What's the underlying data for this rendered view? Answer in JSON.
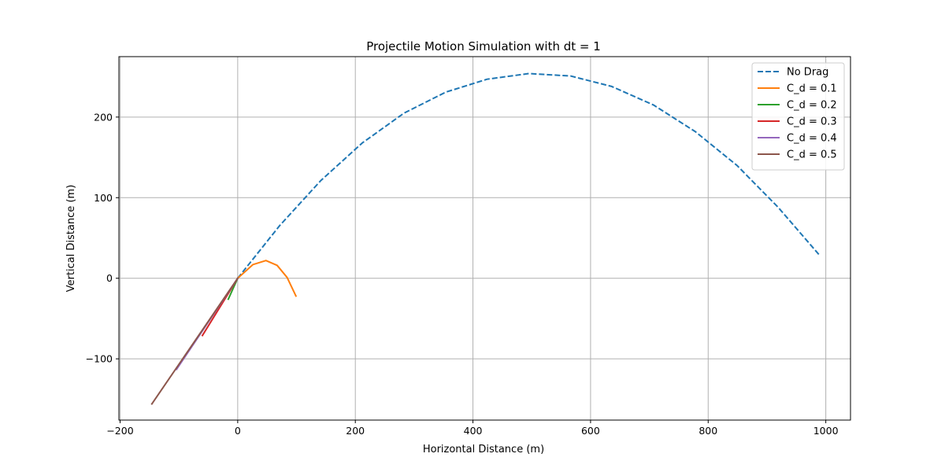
{
  "chart_data": {
    "type": "line",
    "title": "Projectile Motion Simulation with dt = 1",
    "xlabel": "Horizontal Distance (m)",
    "ylabel": "Vertical Distance (m)",
    "xlim": [
      -202,
      1042
    ],
    "ylim": [
      -176,
      275
    ],
    "xticks": [
      -200,
      0,
      200,
      400,
      600,
      800,
      1000
    ],
    "yticks": [
      -100,
      0,
      100,
      200
    ],
    "xtick_labels": [
      "−200",
      "0",
      "200",
      "400",
      "600",
      "800",
      "1000"
    ],
    "ytick_labels": [
      "−100",
      "0",
      "100",
      "200"
    ],
    "grid": true,
    "legend_position": "top-right",
    "series": [
      {
        "name": "No Drag",
        "color": "#1f77b4",
        "dash": "dashed",
        "points": [
          [
            0,
            0
          ],
          [
            71,
            65
          ],
          [
            141,
            121
          ],
          [
            212,
            168
          ],
          [
            283,
            205
          ],
          [
            354,
            231
          ],
          [
            424,
            247
          ],
          [
            495,
            254
          ],
          [
            566,
            251
          ],
          [
            636,
            238
          ],
          [
            707,
            215
          ],
          [
            778,
            182
          ],
          [
            849,
            140
          ],
          [
            919,
            88
          ],
          [
            990,
            28
          ]
        ]
      },
      {
        "name": "C_d = 0.1",
        "color": "#ff7f0e",
        "dash": "solid",
        "points": [
          [
            0,
            0
          ],
          [
            26,
            17
          ],
          [
            48,
            22
          ],
          [
            67,
            16
          ],
          [
            84,
            1
          ],
          [
            99,
            -22
          ]
        ]
      },
      {
        "name": "C_d = 0.2",
        "color": "#2ca02c",
        "dash": "solid",
        "points": [
          [
            0,
            0
          ],
          [
            -16,
            -26
          ]
        ]
      },
      {
        "name": "C_d = 0.3",
        "color": "#d62728",
        "dash": "solid",
        "points": [
          [
            0,
            0
          ],
          [
            -60,
            -71
          ]
        ]
      },
      {
        "name": "C_d = 0.4",
        "color": "#9467bd",
        "dash": "solid",
        "points": [
          [
            0,
            0
          ],
          [
            -104,
            -113
          ]
        ]
      },
      {
        "name": "C_d = 0.5",
        "color": "#8c564b",
        "dash": "solid",
        "points": [
          [
            0,
            0
          ],
          [
            -146,
            -156
          ]
        ]
      }
    ]
  }
}
